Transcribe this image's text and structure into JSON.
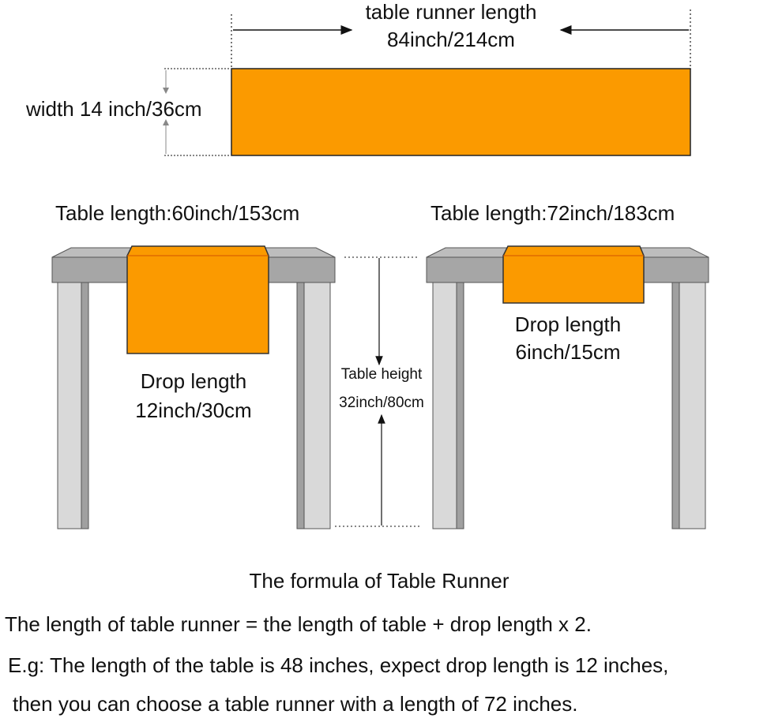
{
  "colors": {
    "runner": "#fb9a00",
    "table_top": "#a6a6a6",
    "table_leg": "#d9d9d9",
    "background": "#ffffff"
  },
  "runner_dimensions": {
    "length_label": "table runner length",
    "length_value": "84inch/214cm",
    "width_label": "width 14 inch/36cm"
  },
  "tables": [
    {
      "length_label": "Table length:60inch/153cm",
      "drop_label": "Drop length",
      "drop_value": "12inch/30cm"
    },
    {
      "length_label": "Table length:72inch/183cm",
      "drop_label": "Drop length",
      "drop_value": "6inch/15cm"
    }
  ],
  "table_height": {
    "label": "Table height",
    "value": "32inch/80cm"
  },
  "formula": {
    "title": "The formula of Table Runner",
    "line1": "The length of table runner = the length of table + drop length x 2.",
    "line2": "E.g: The length of the table is 48 inches, expect drop length is 12 inches,",
    "line3": "then you can choose a table runner with a length of 72 inches."
  }
}
